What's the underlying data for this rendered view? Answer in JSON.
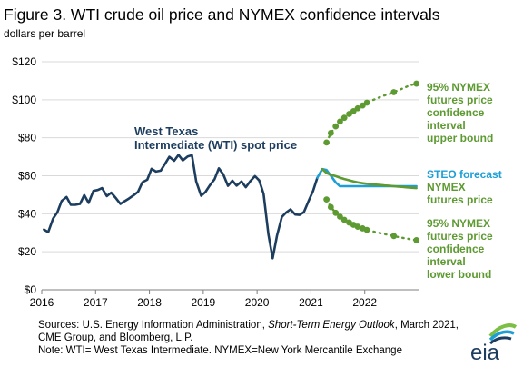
{
  "header": {
    "title": "Figure 3. WTI crude oil price and NYMEX confidence intervals",
    "unit": "dollars per barrel"
  },
  "annotations": {
    "wti_line1": "West Texas",
    "wti_line2": "Intermediate (WTI) spot price",
    "upper1": "95% NYMEX",
    "upper2": "futures price",
    "upper3": "confidence",
    "upper4": "interval",
    "upper5": "upper bound",
    "steo1": "STEO forecast",
    "steo2": "NYMEX",
    "steo3": "futures price",
    "lower1": "95% NYMEX",
    "lower2": "futures price",
    "lower3": "confidence",
    "lower4": "interval",
    "lower5": "lower bound"
  },
  "footer": {
    "src_line1_a": "Sources: U.S. Energy Information Administration, ",
    "src_line1_b": "Short-Term Energy Outlook",
    "src_line1_c": ", March 2021,",
    "src_line2": "CME Group, and Bloomberg, L.P.",
    "note": "Note: WTI= West Texas Intermediate. NYMEX=New York Mercantile Exchange"
  },
  "logo": {
    "text": "eia"
  },
  "colors": {
    "wti": "#1d3d5f",
    "steo": "#1d9fd6",
    "nymex": "#5d9a31",
    "grid": "#d9d9d9"
  },
  "chart_data": {
    "type": "line",
    "x_ticks": [
      "2016",
      "2017",
      "2018",
      "2019",
      "2020",
      "2021",
      "2022"
    ],
    "y_ticks": [
      "$0",
      "$20",
      "$40",
      "$60",
      "$80",
      "$100",
      "$120"
    ],
    "xlim": [
      2016.0,
      2023.0
    ],
    "ylim": [
      0,
      120
    ],
    "grid": "horizontal",
    "series": [
      {
        "name": "West Texas Intermediate (WTI) spot price",
        "style": "solid",
        "x": [
          2016.04,
          2016.12,
          2016.21,
          2016.29,
          2016.37,
          2016.46,
          2016.54,
          2016.62,
          2016.71,
          2016.79,
          2016.87,
          2016.96,
          2017.04,
          2017.12,
          2017.21,
          2017.29,
          2017.37,
          2017.46,
          2017.54,
          2017.62,
          2017.71,
          2017.79,
          2017.87,
          2017.96,
          2018.04,
          2018.12,
          2018.21,
          2018.29,
          2018.37,
          2018.46,
          2018.54,
          2018.62,
          2018.71,
          2018.79,
          2018.87,
          2018.96,
          2019.04,
          2019.12,
          2019.21,
          2019.29,
          2019.37,
          2019.46,
          2019.54,
          2019.62,
          2019.71,
          2019.79,
          2019.87,
          2019.96,
          2020.04,
          2020.12,
          2020.21,
          2020.29,
          2020.37,
          2020.46,
          2020.54,
          2020.62,
          2020.71,
          2020.79,
          2020.87,
          2020.96,
          2021.04,
          2021.12
        ],
        "y": [
          31.7,
          30.3,
          37.5,
          40.8,
          46.7,
          48.8,
          44.7,
          44.7,
          45.2,
          49.8,
          45.7,
          52.0,
          52.5,
          53.5,
          49.3,
          51.1,
          48.5,
          45.2,
          46.6,
          48.0,
          49.8,
          51.6,
          56.6,
          57.9,
          63.7,
          62.2,
          62.7,
          66.3,
          70.0,
          67.9,
          71.0,
          68.1,
          70.2,
          70.8,
          57.0,
          49.5,
          51.4,
          54.9,
          58.2,
          63.9,
          60.8,
          54.7,
          57.4,
          54.8,
          57.0,
          54.0,
          57.0,
          59.8,
          57.5,
          50.5,
          29.2,
          16.6,
          28.6,
          38.3,
          40.7,
          42.3,
          39.6,
          39.4,
          40.9,
          47.0,
          52.0,
          59.0
        ]
      },
      {
        "name": "STEO forecast",
        "style": "solid",
        "x": [
          2021.12,
          2021.21,
          2021.29,
          2021.37,
          2021.46,
          2021.54,
          2021.62,
          2021.71,
          2021.79,
          2021.87,
          2021.96,
          2022.04,
          2022.12,
          2022.21,
          2022.29,
          2022.37,
          2022.46,
          2022.54,
          2022.62,
          2022.71,
          2022.79,
          2022.87,
          2022.96
        ],
        "y": [
          59.0,
          63.5,
          63.0,
          60.0,
          56.5,
          54.5,
          54.5,
          54.5,
          54.5,
          54.5,
          54.5,
          54.5,
          54.5,
          54.5,
          54.5,
          54.5,
          54.5,
          54.5,
          54.5,
          54.5,
          54.5,
          54.5,
          54.5
        ]
      },
      {
        "name": "NYMEX futures price",
        "style": "solid",
        "x": [
          2021.21,
          2021.29,
          2021.37,
          2021.46,
          2021.54,
          2021.62,
          2021.71,
          2021.79,
          2021.87,
          2021.96,
          2022.04,
          2022.12,
          2022.21,
          2022.29,
          2022.37,
          2022.46,
          2022.54,
          2022.62,
          2022.71,
          2022.79,
          2022.87,
          2022.96
        ],
        "y": [
          63.5,
          61.5,
          60.5,
          59.8,
          59.0,
          58.3,
          57.6,
          57.0,
          56.5,
          56.1,
          55.8,
          55.5,
          55.3,
          55.1,
          54.9,
          54.7,
          54.5,
          54.3,
          54.1,
          53.9,
          53.7,
          53.5
        ]
      },
      {
        "name": "95% NYMEX futures price confidence interval upper bound",
        "style": "dotted",
        "x": [
          2021.29,
          2021.37,
          2021.46,
          2021.54,
          2021.62,
          2021.71,
          2021.79,
          2021.87,
          2021.96,
          2022.04,
          2022.12,
          2022.21,
          2022.29,
          2022.37,
          2022.46,
          2022.54,
          2022.62,
          2022.71,
          2022.79,
          2022.87,
          2022.96
        ],
        "y": [
          77.5,
          82.5,
          86.0,
          88.5,
          90.5,
          92.5,
          94.0,
          95.5,
          97.0,
          98.5,
          99.5,
          100.5,
          101.5,
          102.3,
          103.0,
          104.0,
          105.0,
          106.0,
          107.0,
          107.8,
          108.5
        ]
      },
      {
        "name": "95% NYMEX futures price confidence interval lower bound",
        "style": "dotted",
        "x": [
          2021.29,
          2021.37,
          2021.46,
          2021.54,
          2021.62,
          2021.71,
          2021.79,
          2021.87,
          2021.96,
          2022.04,
          2022.12,
          2022.21,
          2022.29,
          2022.37,
          2022.46,
          2022.54,
          2022.62,
          2022.71,
          2022.79,
          2022.87,
          2022.96
        ],
        "y": [
          47.5,
          43.5,
          40.5,
          38.5,
          36.8,
          35.4,
          34.2,
          33.2,
          32.3,
          31.5,
          30.9,
          30.3,
          29.8,
          29.3,
          28.8,
          28.3,
          27.8,
          27.3,
          26.9,
          26.5,
          26.1
        ]
      }
    ],
    "marker_indices": {
      "upper": [
        0,
        1,
        2,
        3,
        4,
        5,
        6,
        7,
        8,
        9,
        15,
        20
      ],
      "lower": [
        0,
        1,
        2,
        3,
        4,
        5,
        6,
        7,
        8,
        9,
        15,
        20
      ]
    }
  }
}
